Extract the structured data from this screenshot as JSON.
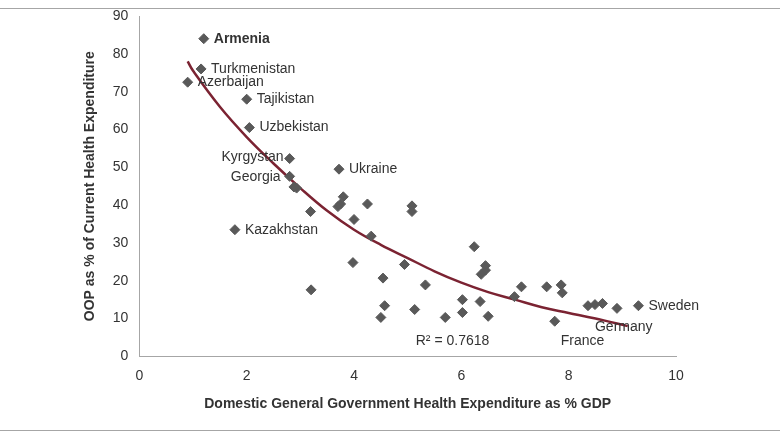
{
  "chart_data": {
    "type": "scatter",
    "xlabel": "Domestic General Government Health Expenditure as % GDP",
    "ylabel": "OOP as % of Current Health Expenditure",
    "xlim": [
      0,
      10
    ],
    "xticks": [
      0,
      2,
      4,
      6,
      8,
      10
    ],
    "ylim": [
      0,
      90
    ],
    "yticks": [
      0,
      10,
      20,
      30,
      40,
      50,
      60,
      70,
      80,
      90
    ],
    "grid": false,
    "annotations": [
      "R² = 0.7618"
    ],
    "series": [
      {
        "type": "scatter",
        "marker": "diamond",
        "color": "#595959",
        "x": [
          1.2,
          1.15,
          0.9,
          2.0,
          2.05,
          2.8,
          2.8,
          2.88,
          2.93,
          1.78,
          3.72,
          3.8,
          3.75,
          3.7,
          3.19,
          4.25,
          4.0,
          4.32,
          3.2,
          3.98,
          4.54,
          4.57,
          4.5,
          5.08,
          5.08,
          4.94,
          5.33,
          5.13,
          5.7,
          6.24,
          6.02,
          6.02,
          6.35,
          6.37,
          6.45,
          6.45,
          6.5,
          6.99,
          7.12,
          7.59,
          7.86,
          7.88,
          7.74,
          8.36,
          8.49,
          8.63,
          8.9,
          9.3
        ],
        "values": [
          84,
          76,
          72.5,
          68,
          60.5,
          52.3,
          47.6,
          44.8,
          44.5,
          33.5,
          49.5,
          42.2,
          40.3,
          39.6,
          38.3,
          40.3,
          36.2,
          31.8,
          17.6,
          24.8,
          20.7,
          13.4,
          10.3,
          39.8,
          38.3,
          24.3,
          18.9,
          12.4,
          10.3,
          29.0,
          15.0,
          11.6,
          14.5,
          21.7,
          22.8,
          24.0,
          10.6,
          15.8,
          18.4,
          18.4,
          18.9,
          16.8,
          9.3,
          13.4,
          13.7,
          14.0,
          12.7,
          13.4
        ],
        "point_labels": [
          "Armenia",
          "Turkmenistan",
          "Azerbaijan",
          "Tajikistan",
          "Uzbekistan",
          "Kyrgystan",
          "Georgia",
          null,
          null,
          "Kazakhstan",
          "Ukraine",
          null,
          null,
          null,
          null,
          null,
          null,
          null,
          null,
          null,
          null,
          null,
          null,
          null,
          null,
          null,
          null,
          null,
          null,
          null,
          null,
          null,
          null,
          null,
          null,
          null,
          null,
          null,
          null,
          null,
          null,
          null,
          "France",
          null,
          null,
          null,
          "Germany",
          "Sweden"
        ]
      },
      {
        "type": "line",
        "line_style": "solid",
        "color": "#7b2332",
        "x": [
          0.9,
          1,
          1.5,
          2,
          2.5,
          3,
          3.5,
          4,
          4.5,
          5,
          5.5,
          6,
          6.5,
          7,
          7.5,
          8,
          8.5,
          9.1
        ],
        "values": [
          78,
          75.5,
          66,
          58,
          51,
          44.5,
          38.5,
          33.5,
          29.5,
          26,
          22.5,
          19.5,
          17,
          15,
          13,
          11.5,
          10,
          8
        ]
      }
    ]
  }
}
